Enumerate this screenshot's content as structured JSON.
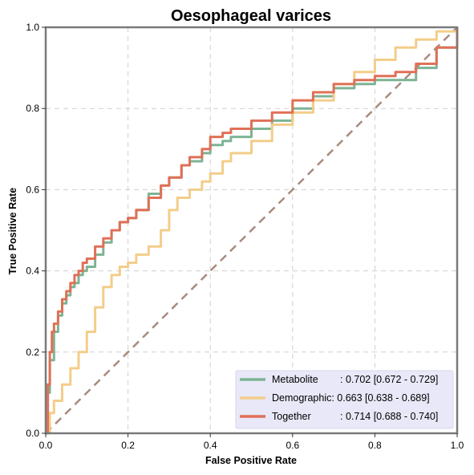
{
  "chart_data": {
    "type": "line",
    "title": "Oesophageal varices",
    "xlabel": "False Positive Rate",
    "ylabel": "True Positive Rate",
    "xlim": [
      0,
      1
    ],
    "ylim": [
      0,
      1
    ],
    "xticks": [
      "0.0",
      "0.2",
      "0.4",
      "0.6",
      "0.8",
      "1.0"
    ],
    "yticks": [
      "0.0",
      "0.2",
      "0.4",
      "0.6",
      "0.8",
      "1.0"
    ],
    "grid": true,
    "legend_position": "lower-right",
    "diagonal": {
      "x": [
        0,
        1
      ],
      "y": [
        0,
        1
      ],
      "color": "#a88b7e"
    },
    "series": [
      {
        "name": "Metabolite",
        "auc_label": ": 0.702 [0.672 - 0.729]",
        "color": "#7db494",
        "x": [
          0,
          0.005,
          0.01,
          0.02,
          0.03,
          0.04,
          0.05,
          0.06,
          0.07,
          0.08,
          0.09,
          0.1,
          0.12,
          0.14,
          0.16,
          0.18,
          0.2,
          0.22,
          0.25,
          0.28,
          0.3,
          0.33,
          0.35,
          0.38,
          0.4,
          0.43,
          0.45,
          0.5,
          0.55,
          0.6,
          0.65,
          0.7,
          0.75,
          0.8,
          0.85,
          0.9,
          0.95,
          1.0
        ],
        "y": [
          0,
          0.1,
          0.18,
          0.25,
          0.29,
          0.32,
          0.34,
          0.36,
          0.37,
          0.39,
          0.4,
          0.41,
          0.44,
          0.47,
          0.5,
          0.52,
          0.53,
          0.55,
          0.59,
          0.61,
          0.63,
          0.66,
          0.67,
          0.69,
          0.71,
          0.72,
          0.73,
          0.75,
          0.77,
          0.8,
          0.83,
          0.85,
          0.86,
          0.87,
          0.87,
          0.9,
          0.95,
          1.0
        ]
      },
      {
        "name": "Demographic",
        "auc_label": ": 0.663 [0.638 - 0.689]",
        "color": "#f3cd8a",
        "x": [
          0,
          0.01,
          0.02,
          0.04,
          0.06,
          0.08,
          0.1,
          0.12,
          0.14,
          0.16,
          0.18,
          0.2,
          0.22,
          0.25,
          0.28,
          0.3,
          0.32,
          0.35,
          0.38,
          0.4,
          0.43,
          0.45,
          0.5,
          0.55,
          0.6,
          0.65,
          0.7,
          0.75,
          0.8,
          0.85,
          0.9,
          0.95,
          1.0
        ],
        "y": [
          0,
          0.05,
          0.08,
          0.12,
          0.16,
          0.2,
          0.25,
          0.31,
          0.36,
          0.39,
          0.41,
          0.42,
          0.44,
          0.46,
          0.5,
          0.55,
          0.58,
          0.6,
          0.62,
          0.64,
          0.67,
          0.69,
          0.72,
          0.76,
          0.79,
          0.82,
          0.86,
          0.89,
          0.92,
          0.95,
          0.97,
          0.99,
          1.0
        ]
      },
      {
        "name": "Together",
        "auc_label": ": 0.714 [0.688 - 0.740]",
        "color": "#e07057",
        "x": [
          0,
          0.005,
          0.01,
          0.015,
          0.02,
          0.03,
          0.04,
          0.05,
          0.06,
          0.07,
          0.08,
          0.09,
          0.1,
          0.12,
          0.14,
          0.16,
          0.18,
          0.2,
          0.22,
          0.25,
          0.28,
          0.3,
          0.33,
          0.35,
          0.38,
          0.4,
          0.43,
          0.45,
          0.5,
          0.55,
          0.6,
          0.65,
          0.7,
          0.75,
          0.8,
          0.85,
          0.9,
          0.95,
          1.0
        ],
        "y": [
          0,
          0.12,
          0.2,
          0.25,
          0.27,
          0.3,
          0.33,
          0.35,
          0.37,
          0.39,
          0.4,
          0.42,
          0.43,
          0.46,
          0.48,
          0.5,
          0.52,
          0.53,
          0.55,
          0.58,
          0.61,
          0.63,
          0.66,
          0.68,
          0.7,
          0.73,
          0.74,
          0.75,
          0.77,
          0.79,
          0.82,
          0.84,
          0.86,
          0.87,
          0.88,
          0.89,
          0.91,
          0.95,
          1.0
        ]
      }
    ]
  }
}
